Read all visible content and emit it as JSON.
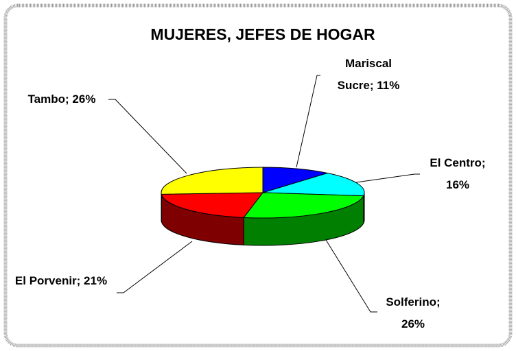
{
  "chart_data": {
    "type": "pie",
    "title": "MUJERES, JEFES DE HOGAR",
    "categories": [
      "Mariscal Sucre",
      "El Centro",
      "Solferino",
      "El Porvenir",
      "Tambo"
    ],
    "values": [
      11,
      16,
      26,
      21,
      26
    ],
    "value_labels": [
      "Mariscal Sucre; 11%",
      "El Centro; 16%",
      "Solferino; 26%",
      "El Porvenir; 21%",
      "Tambo; 26%"
    ],
    "colors": [
      "#0000ff",
      "#00ffff",
      "#00ff00",
      "#ff0000",
      "#ffff00"
    ]
  }
}
